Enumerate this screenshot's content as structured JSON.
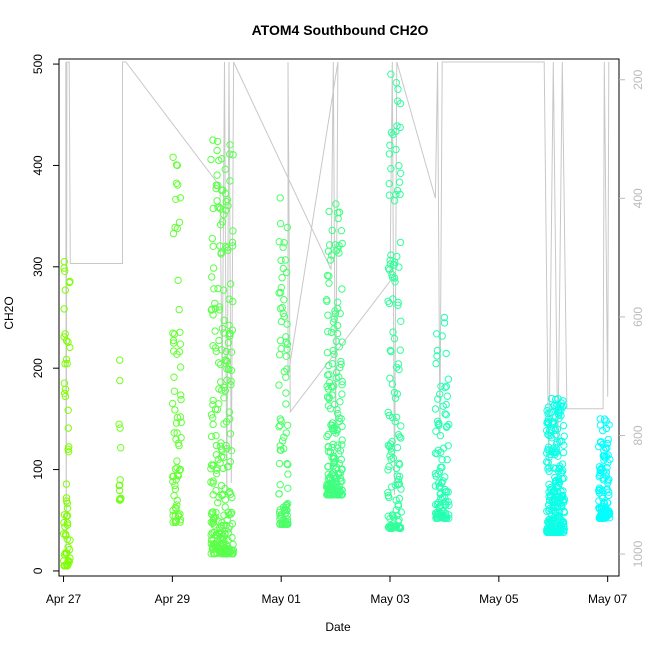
{
  "chart_data": {
    "type": "scatter",
    "title": "ATOM4 Southbound CH2O",
    "xlabel": "Date",
    "ylabel": "CH2O",
    "xlim": [
      "2018-04-26T22:00",
      "2018-05-07T05:00"
    ],
    "ylim": [
      -5,
      505
    ],
    "x_ticks": [
      {
        "date": "2018-04-27T00:00",
        "label": "Apr 27"
      },
      {
        "date": "2018-04-29T00:00",
        "label": "Apr 29"
      },
      {
        "date": "2018-05-01T00:00",
        "label": "May 01"
      },
      {
        "date": "2018-05-03T00:00",
        "label": "May 03"
      },
      {
        "date": "2018-05-05T00:00",
        "label": "May 05"
      },
      {
        "date": "2018-05-07T00:00",
        "label": "May 07"
      }
    ],
    "y_ticks": [
      0,
      100,
      200,
      300,
      400,
      500
    ],
    "secondary_axis": {
      "side": "right",
      "reversed": true,
      "color": "#bbbbbb",
      "ylim": [
        1037,
        165
      ],
      "ticks": [
        200,
        400,
        600,
        800,
        1000
      ]
    },
    "grid": false,
    "point_style": "open-circle",
    "color_scale": [
      "#7fff00",
      "#00ffff"
    ],
    "series": [
      {
        "start": "2018-04-27T00:00",
        "end": "2018-04-27T03:00",
        "min": 5,
        "max": 305,
        "n": 60
      },
      {
        "start": "2018-04-28T00:30",
        "end": "2018-04-28T01:30",
        "min": 70,
        "max": 208,
        "n": 14
      },
      {
        "start": "2018-04-29T00:00",
        "end": "2018-04-29T04:00",
        "min": 48,
        "max": 408,
        "n": 70
      },
      {
        "start": "2018-04-29T17:00",
        "end": "2018-04-30T03:00",
        "min": 17,
        "max": 425,
        "n": 260
      },
      {
        "start": "2018-04-30T23:00",
        "end": "2018-05-01T03:00",
        "min": 46,
        "max": 368,
        "n": 90
      },
      {
        "start": "2018-05-01T20:00",
        "end": "2018-05-02T03:00",
        "min": 75,
        "max": 362,
        "n": 190
      },
      {
        "start": "2018-05-02T23:00",
        "end": "2018-05-03T05:00",
        "min": 42,
        "max": 490,
        "n": 130
      },
      {
        "start": "2018-05-03T20:00",
        "end": "2018-05-04T02:00",
        "min": 52,
        "max": 250,
        "n": 100
      },
      {
        "start": "2018-05-05T21:00",
        "end": "2018-05-06T05:00",
        "min": 38,
        "max": 170,
        "n": 240
      },
      {
        "start": "2018-05-06T20:00",
        "end": "2018-05-07T01:00",
        "min": 52,
        "max": 150,
        "n": 110
      }
    ],
    "pressure_trace": [
      [
        "2018-04-27T01:00",
        170
      ],
      [
        "2018-04-27T01:10",
        1020
      ],
      [
        "2018-04-27T01:30",
        170
      ],
      [
        "2018-04-27T02:30",
        170
      ],
      [
        "2018-04-27T03:00",
        510
      ],
      [
        "2018-04-28T02:00",
        510
      ],
      [
        "2018-04-28T02:00",
        170
      ],
      [
        "2018-04-28T03:30",
        170
      ],
      [
        "2018-04-29T21:00",
        380
      ],
      [
        "2018-04-29T22:00",
        720
      ],
      [
        "2018-04-29T23:00",
        170
      ],
      [
        "2018-04-30T00:00",
        900
      ],
      [
        "2018-04-30T01:00",
        170
      ],
      [
        "2018-04-30T02:00",
        880
      ],
      [
        "2018-04-30T03:00",
        170
      ],
      [
        "2018-05-01T22:00",
        520
      ],
      [
        "2018-05-01T23:00",
        170
      ],
      [
        "2018-05-02T00:00",
        800
      ],
      [
        "2018-05-02T01:00",
        170
      ],
      [
        "2018-05-01T03:00",
        700
      ],
      [
        "2018-05-01T03:00",
        170
      ],
      [
        "2018-05-01T04:00",
        760
      ],
      [
        "2018-05-03T00:00",
        540
      ],
      [
        "2018-05-03T01:00",
        170
      ],
      [
        "2018-05-03T02:00",
        900
      ],
      [
        "2018-05-03T03:00",
        170
      ],
      [
        "2018-05-03T20:00",
        400
      ],
      [
        "2018-05-03T21:00",
        170
      ],
      [
        "2018-05-03T22:00",
        800
      ],
      [
        "2018-05-03T23:00",
        170
      ],
      [
        "2018-05-05T20:00",
        170
      ],
      [
        "2018-05-05T22:00",
        860
      ],
      [
        "2018-05-06T00:00",
        170
      ],
      [
        "2018-05-06T02:00",
        830
      ],
      [
        "2018-05-06T04:00",
        170
      ],
      [
        "2018-05-06T06:00",
        755
      ],
      [
        "2018-05-06T22:00",
        755
      ],
      [
        "2018-05-06T22:30",
        170
      ],
      [
        "2018-05-07T00:00",
        735
      ],
      [
        "2018-05-07T00:30",
        170
      ]
    ]
  }
}
